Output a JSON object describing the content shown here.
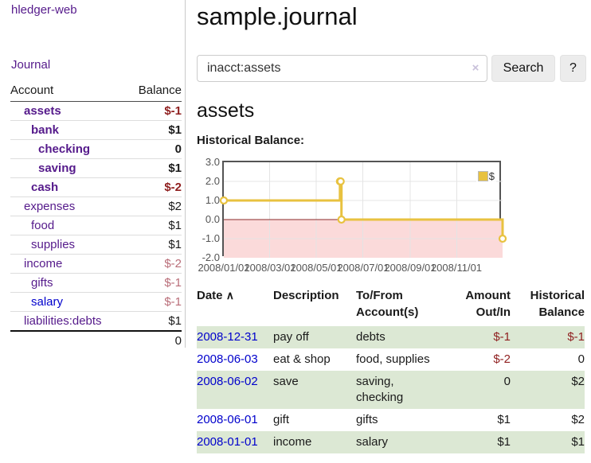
{
  "app": {
    "brand": "hledger-web"
  },
  "sidebar": {
    "journal_link": "Journal",
    "table": {
      "account_header": "Account",
      "balance_header": "Balance",
      "rows": [
        {
          "account": "assets",
          "indent": 1,
          "bold": true,
          "balance": "$-1",
          "balance_style": "neg",
          "link_style": "purple"
        },
        {
          "account": "bank",
          "indent": 2,
          "bold": true,
          "balance": "$1",
          "balance_style": "pos",
          "link_style": "purple"
        },
        {
          "account": "checking",
          "indent": 3,
          "bold": true,
          "balance": "0",
          "balance_style": "pos",
          "link_style": "purple"
        },
        {
          "account": "saving",
          "indent": 3,
          "bold": true,
          "balance": "$1",
          "balance_style": "pos",
          "link_style": "purple"
        },
        {
          "account": "cash",
          "indent": 2,
          "bold": true,
          "balance": "$-2",
          "balance_style": "neg",
          "link_style": "purple"
        },
        {
          "account": "expenses",
          "indent": 1,
          "bold": false,
          "balance": "$2",
          "balance_style": "pos",
          "link_style": "purple"
        },
        {
          "account": "food",
          "indent": 2,
          "bold": false,
          "balance": "$1",
          "balance_style": "pos",
          "link_style": "purple"
        },
        {
          "account": "supplies",
          "indent": 2,
          "bold": false,
          "balance": "$1",
          "balance_style": "pos",
          "link_style": "purple"
        },
        {
          "account": "income",
          "indent": 1,
          "bold": false,
          "balance": "$-2",
          "balance_style": "neg-muted",
          "link_style": "purple"
        },
        {
          "account": "gifts",
          "indent": 2,
          "bold": false,
          "balance": "$-1",
          "balance_style": "neg-muted",
          "link_style": "purple"
        },
        {
          "account": "salary",
          "indent": 2,
          "bold": false,
          "balance": "$-1",
          "balance_style": "neg-muted",
          "link_style": "blue"
        },
        {
          "account": "liabilities:debts",
          "indent": 1,
          "bold": false,
          "balance": "$1",
          "balance_style": "pos",
          "link_style": "purple"
        }
      ],
      "total": "0"
    }
  },
  "main": {
    "title": "sample.journal",
    "search": {
      "value": "inacct:assets",
      "clear_icon": "×",
      "search_button": "Search",
      "help_button": "?"
    },
    "account_heading": "assets",
    "chart_title": "Historical Balance:"
  },
  "chart_data": {
    "type": "line",
    "style": "step",
    "title": "Historical Balance:",
    "legend_position": "top-right",
    "grid": true,
    "negative_region_shaded": true,
    "xlim": [
      "2008-01-01",
      "2008-12-31"
    ],
    "ylim": [
      -2.0,
      3.0
    ],
    "y_ticks": [
      {
        "v": 3,
        "label": "3.0"
      },
      {
        "v": 2,
        "label": "2.0"
      },
      {
        "v": 1,
        "label": "1.0"
      },
      {
        "v": 0,
        "label": "0.0"
      },
      {
        "v": -1,
        "label": "-1.0"
      },
      {
        "v": -2,
        "label": "-2.0"
      }
    ],
    "x_ticks": [
      {
        "date": "2008-01-01",
        "label": "2008/01/01"
      },
      {
        "date": "2008-03-01",
        "label": "2008/03/01"
      },
      {
        "date": "2008-05-01",
        "label": "2008/05/01"
      },
      {
        "date": "2008-07-01",
        "label": "2008/07/01"
      },
      {
        "date": "2008-09-01",
        "label": "2008/09/01"
      },
      {
        "date": "2008-11-01",
        "label": "2008/11/01"
      }
    ],
    "series": [
      {
        "name": "$",
        "points": [
          {
            "x": "2008-01-01",
            "y": 1
          },
          {
            "x": "2008-06-01",
            "y": 2
          },
          {
            "x": "2008-06-02",
            "y": 2
          },
          {
            "x": "2008-06-03",
            "y": 0
          },
          {
            "x": "2008-12-31",
            "y": -1
          }
        ]
      }
    ]
  },
  "register": {
    "headers": {
      "date": "Date",
      "sort_icon": "∧",
      "description": "Description",
      "accounts": "To/From Account(s)",
      "amount": "Amount Out/In",
      "balance": "Historical Balance"
    },
    "rows": [
      {
        "date": "2008-12-31",
        "description": "pay off",
        "accounts": "debts",
        "amount": "$-1",
        "amount_neg": true,
        "balance": "$-1",
        "balance_neg": true,
        "stripe": true
      },
      {
        "date": "2008-06-03",
        "description": "eat & shop",
        "accounts": "food, supplies",
        "amount": "$-2",
        "amount_neg": true,
        "balance": "0",
        "balance_neg": false,
        "stripe": false
      },
      {
        "date": "2008-06-02",
        "description": "save",
        "accounts": "saving, checking",
        "amount": "0",
        "amount_neg": false,
        "balance": "$2",
        "balance_neg": false,
        "stripe": true
      },
      {
        "date": "2008-06-01",
        "description": "gift",
        "accounts": "gifts",
        "amount": "$1",
        "amount_neg": false,
        "balance": "$2",
        "balance_neg": false,
        "stripe": false
      },
      {
        "date": "2008-01-01",
        "description": "income",
        "accounts": "salary",
        "amount": "$1",
        "amount_neg": false,
        "balance": "$1",
        "balance_neg": false,
        "stripe": true
      }
    ]
  },
  "colors": {
    "link_purple": "#551A8B",
    "link_blue": "#0000CC",
    "negative_red": "#8F1F1F",
    "negative_muted": "#B96D78",
    "stripe_green": "#DCE8D4",
    "chart_line": "#E8C240",
    "chart_negative_fill": "#FBDADA",
    "chart_zero_line": "#8B2A2A",
    "chart_grid": "#E4E4E4",
    "chart_border": "#545454"
  }
}
